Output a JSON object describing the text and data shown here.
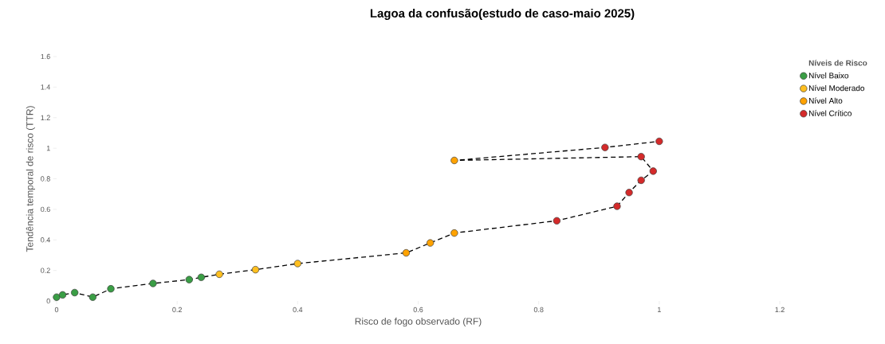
{
  "chart_data": {
    "type": "scatter",
    "title": "Lagoa da confusão(estudo de caso-maio 2025)",
    "xlabel": "Risco de fogo observado (RF)",
    "ylabel": "Tendência temporal de risco (TTR)",
    "legend_title": "Níveis de Risco",
    "series": [
      {
        "type": "line",
        "color": "#000000",
        "line_style": "dashed",
        "marker": "none",
        "x": [
          0,
          0.01,
          0.03,
          0.06,
          0.09,
          0.16,
          0.22,
          0.24,
          0.27,
          0.33,
          0.4,
          0.58,
          0.62,
          0.66,
          0.83,
          0.93,
          0.95,
          0.97,
          0.99,
          0.97,
          0.66,
          0.91,
          1.0
        ],
        "values": [
          0.025,
          0.04,
          0.055,
          0.025,
          0.08,
          0.115,
          0.14,
          0.155,
          0.175,
          0.205,
          0.245,
          0.315,
          0.38,
          0.445,
          0.525,
          0.62,
          0.71,
          0.79,
          0.85,
          0.945,
          0.92,
          1.005,
          1.045
        ]
      },
      {
        "name": "Nível Baixo",
        "color": "#3a9e45",
        "x": [
          0,
          0.01,
          0.03,
          0.06,
          0.09,
          0.16,
          0.22,
          0.24
        ],
        "values": [
          0.025,
          0.04,
          0.055,
          0.025,
          0.08,
          0.115,
          0.14,
          0.155
        ]
      },
      {
        "name": "Nível Moderado",
        "color": "#ffbf1f",
        "x": [
          0.27,
          0.33,
          0.4
        ],
        "values": [
          0.175,
          0.205,
          0.245
        ]
      },
      {
        "name": "Nível Alto",
        "color": "#ffa200",
        "x": [
          0.58,
          0.62,
          0.66,
          0.66
        ],
        "values": [
          0.315,
          0.38,
          0.445,
          0.92
        ]
      },
      {
        "name": "Nível Crítico",
        "color": "#d42a2a",
        "x": [
          0.83,
          0.93,
          0.95,
          0.97,
          0.99,
          0.97,
          0.91,
          1.0
        ],
        "values": [
          0.525,
          0.62,
          0.71,
          0.79,
          0.85,
          0.945,
          1.005,
          1.045
        ]
      }
    ],
    "marker": "circle",
    "legend": "top right",
    "grid": false,
    "xlim": [
      0,
      1.2
    ],
    "ylim": [
      0,
      1.6
    ],
    "xticks": [
      0,
      0.2,
      0.4,
      0.6,
      0.8,
      1,
      1.2
    ],
    "yticks": [
      0,
      0.2,
      0.4,
      0.6,
      0.8,
      1,
      1.2,
      1.4,
      1.6
    ]
  }
}
